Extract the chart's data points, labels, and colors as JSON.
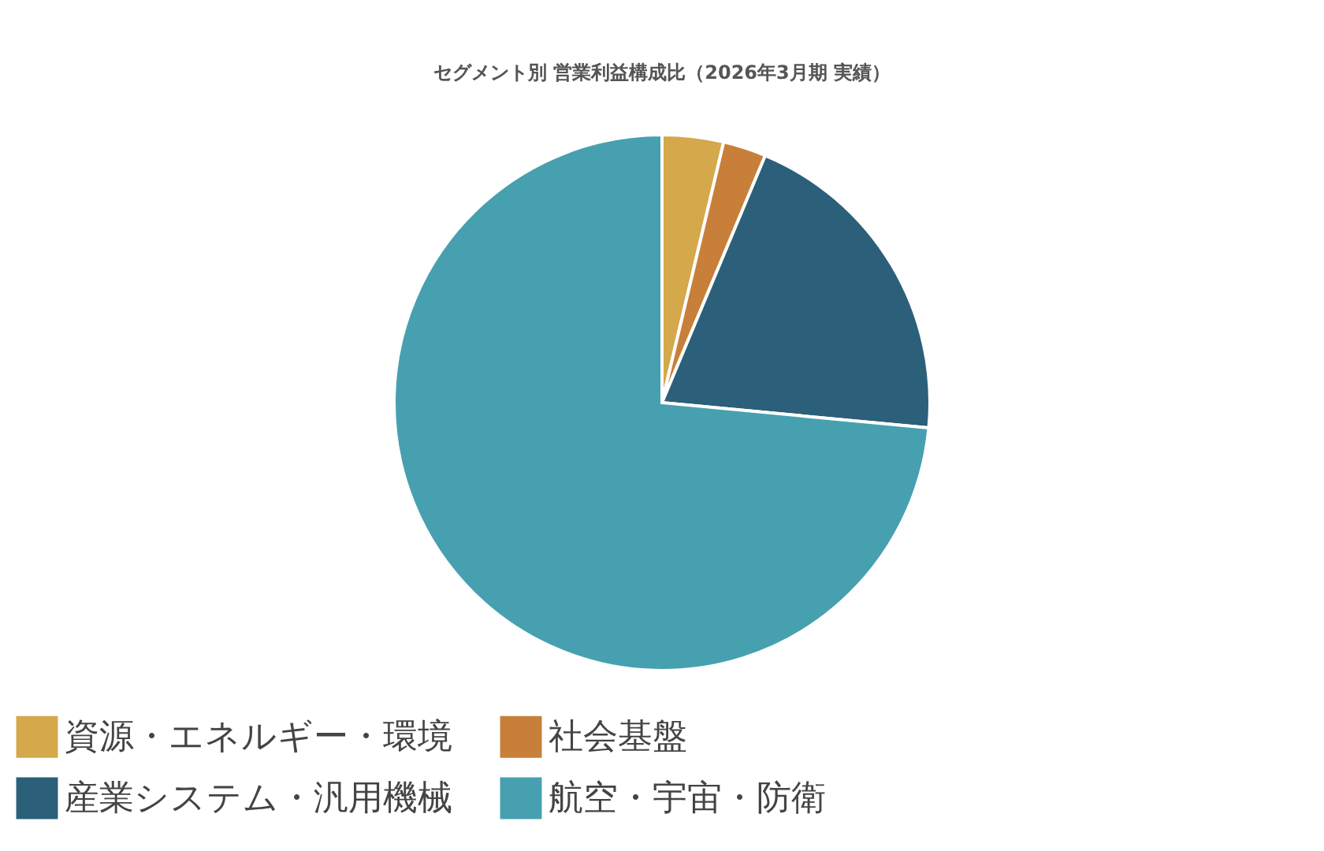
{
  "chart_data": {
    "type": "pie",
    "title": "セグメント別 営業利益構成比（2026年3月期 実績）",
    "categories": [
      "資源・エネルギー・環境",
      "社会基盤",
      "産業システム・汎用機械",
      "航空・宇宙・防衛"
    ],
    "values": [
      3.7,
      2.6,
      20.2,
      73.5
    ],
    "colors": [
      "#d4a84b",
      "#c87f3a",
      "#2b5f7a",
      "#47a0b0"
    ],
    "legend": "bottom"
  }
}
